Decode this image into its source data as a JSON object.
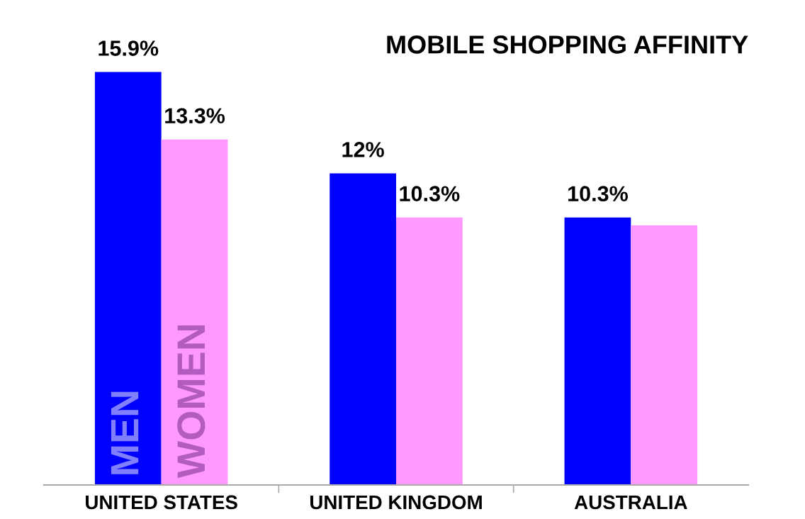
{
  "chart_data": {
    "type": "bar",
    "title": "MOBILE SHOPPING AFFINITY",
    "categories": [
      "UNITED STATES",
      "UNITED KINGDOM",
      "AUSTRALIA"
    ],
    "series": [
      {
        "name": "MEN",
        "color": "#0000ff",
        "values": [
          15.9,
          12,
          10.3
        ],
        "value_labels": [
          "15.9%",
          "12%",
          "10.3%"
        ]
      },
      {
        "name": "WOMEN",
        "color": "#ff99ff",
        "values": [
          13.3,
          10.3,
          10.0
        ],
        "value_labels": [
          "13.3%",
          "10.3%",
          null
        ]
      }
    ],
    "tick_labels": "x",
    "grid": false,
    "legend": false
  }
}
